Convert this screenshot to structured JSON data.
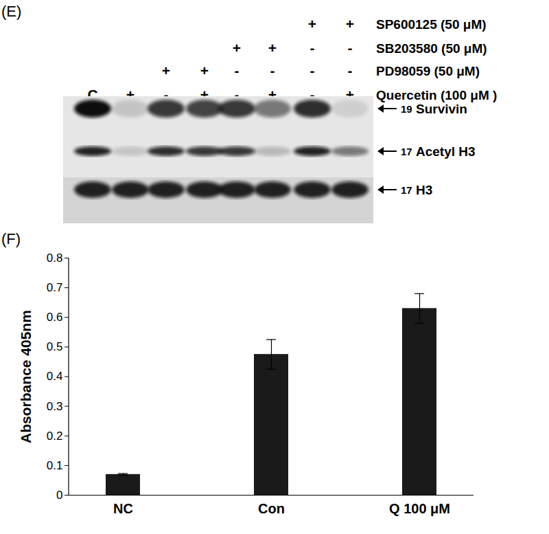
{
  "blot": {
    "panel_label": "(E)",
    "treatments": [
      {
        "label": "SP600125 (50 μM)",
        "lanes": [
          null,
          null,
          null,
          null,
          null,
          null,
          "+",
          "+"
        ]
      },
      {
        "label": "SB203580 (50 μM)",
        "lanes": [
          null,
          null,
          null,
          null,
          "+",
          "+",
          "-",
          "-"
        ]
      },
      {
        "label": "PD98059 (50 μM)",
        "lanes": [
          null,
          null,
          "+",
          "+",
          "-",
          "-",
          "-",
          "-"
        ]
      },
      {
        "label": "Quercetin (100 μM )",
        "lanes": [
          "C",
          "+",
          "-",
          "+",
          "-",
          "+",
          "-",
          "+"
        ]
      }
    ],
    "bands": [
      {
        "mw": 19,
        "label": "Survivin",
        "intensity": [
          1.0,
          0.15,
          0.8,
          0.75,
          0.8,
          0.5,
          0.85,
          0.1
        ]
      },
      {
        "mw": 17,
        "label": "Acetyl H3",
        "intensity": [
          0.9,
          0.15,
          0.85,
          0.8,
          0.8,
          0.2,
          0.9,
          0.5
        ]
      },
      {
        "mw": 17,
        "label": "H3",
        "intensity": [
          0.9,
          0.9,
          0.9,
          0.9,
          0.9,
          0.9,
          0.9,
          0.9
        ]
      }
    ]
  },
  "chart_data": {
    "type": "bar",
    "panel_label": "(F)",
    "y_label": "Absorbance 405nm",
    "categories": [
      "NC",
      "Con",
      "Q 100 μM"
    ],
    "values": [
      0.07,
      0.475,
      0.63
    ],
    "errors": [
      0.003,
      0.05,
      0.05
    ],
    "color": "#1a1a1a",
    "ylim": [
      0,
      0.8
    ],
    "yticks": [
      0,
      0.1,
      0.2,
      0.3,
      0.4,
      0.5,
      0.6,
      0.7,
      0.8
    ],
    "grid": false
  }
}
